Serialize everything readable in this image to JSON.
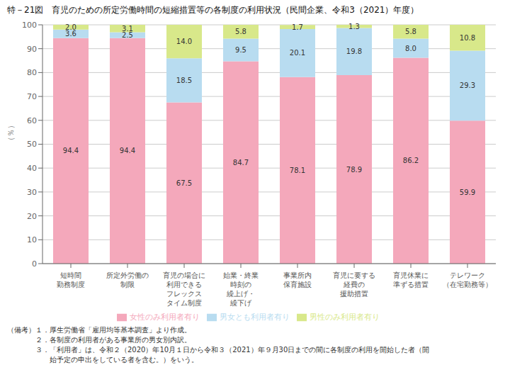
{
  "chart_data": {
    "type": "bar",
    "title": "特－21図　育児のための所定労働時間の短縮措置等の各制度の利用状況（民間企業、令和3（2021）年度）",
    "ylabel": "（％）",
    "categories": [
      "短時間\n勤務制度",
      "所定外労働の\n制限",
      "育児の場合に\n利用できる\nフレックス\nタイム制度",
      "始業・終業\n時刻の\n繰上げ・\n繰下げ",
      "事業所内\n保育施設",
      "育児に要する\n経費の\n援助措置",
      "育児休業に\n準ずる措置",
      "テレワーク\n（在宅勤務等）"
    ],
    "series": [
      {
        "name": "女性のみ利用者有り",
        "color": "#f4a8bb",
        "values": [
          94.4,
          94.4,
          67.5,
          84.7,
          78.1,
          78.9,
          86.2,
          59.9
        ],
        "value_labels": [
          "94.4",
          "94.4",
          "67.5",
          "84.7",
          "78.1",
          "78.9",
          "86.2",
          "59.9"
        ]
      },
      {
        "name": "男女とも利用者有り",
        "color": "#b8dcf0",
        "values": [
          3.6,
          2.5,
          18.5,
          9.5,
          20.1,
          19.8,
          8.0,
          29.3
        ],
        "value_labels": [
          "3.6",
          "2.5",
          "18.5",
          "9.5",
          "20.1",
          "19.8",
          "8.0",
          "29.3"
        ]
      },
      {
        "name": "男性のみ利用者有り",
        "color": "#d8e88a",
        "values": [
          2.0,
          3.1,
          14.0,
          5.8,
          1.7,
          1.3,
          5.8,
          10.8
        ],
        "value_labels": [
          "2.0",
          "3.1",
          "14.0",
          "5.8",
          "1.7",
          "1.3",
          "5.8",
          "10.8"
        ]
      }
    ],
    "ylim": [
      0,
      100
    ],
    "yticks": [
      0,
      10,
      20,
      30,
      40,
      50,
      60,
      70,
      80,
      90,
      100
    ],
    "grid": true,
    "stacked": true,
    "data_labels": true,
    "annotations": [
      "（備考）１．厚生労働省「雇用均等基本調査」より作成。",
      "　　　　２．各制度の利用者がある事業所の男女別内訳。",
      "　　　　３．「利用者」は、令和２（2020）年10月１日から令和３（2021）年９月30日までの間に各制度の利用を開始した者（開",
      "　　　　　　始予定の申出をしている者を含む。）をいう。"
    ]
  }
}
